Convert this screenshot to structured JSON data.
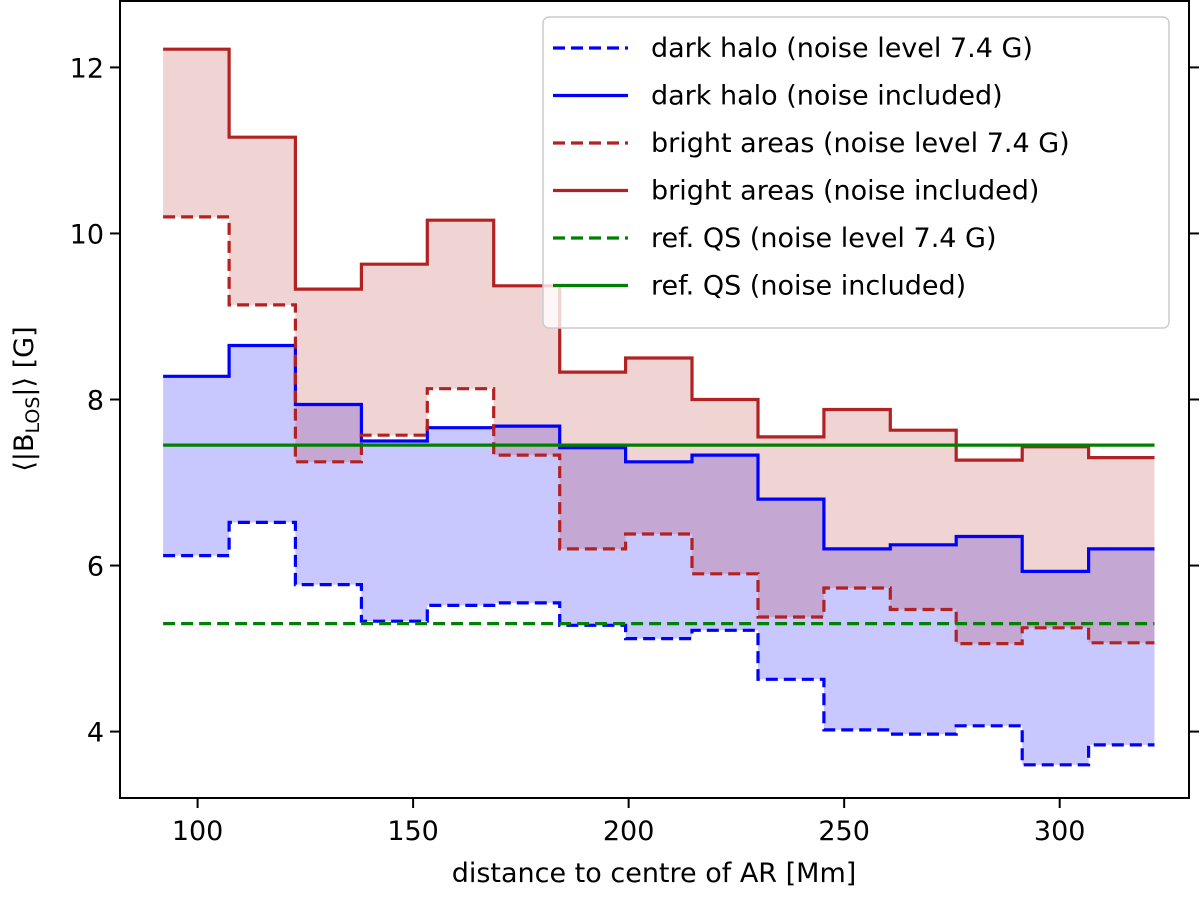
{
  "chart_data": {
    "type": "line",
    "drawstyle": "steps",
    "xlabel": "distance to centre of AR [Mm]",
    "ylabel_parts": {
      "prefix": "⟨|B",
      "subscript": "LOS",
      "suffix": "|⟩ [G]"
    },
    "xlim": [
      82,
      330
    ],
    "ylim": [
      3.2,
      12.8
    ],
    "xticks": [
      100,
      150,
      200,
      250,
      300
    ],
    "yticks": [
      4,
      6,
      8,
      10,
      12
    ],
    "grid": false,
    "legend_position": "top-right",
    "bin_edges": [
      92,
      107.3,
      122.7,
      138,
      153.3,
      168.7,
      184,
      199.3,
      214.7,
      230,
      245.3,
      260.7,
      276,
      291.3,
      306.7,
      322
    ],
    "series": [
      {
        "name": "dark halo (noise level 7.4 G)",
        "color": "#0000ff",
        "dash": true,
        "values": [
          6.12,
          6.52,
          5.77,
          5.33,
          5.52,
          5.55,
          5.28,
          5.12,
          5.22,
          4.63,
          4.02,
          3.97,
          4.07,
          3.6,
          3.84
        ]
      },
      {
        "name": "dark halo (noise included)",
        "color": "#0000ff",
        "dash": false,
        "values": [
          8.28,
          8.65,
          7.94,
          7.5,
          7.66,
          7.68,
          7.42,
          7.25,
          7.33,
          6.8,
          6.2,
          6.25,
          6.35,
          5.93,
          6.2
        ]
      },
      {
        "name": "bright areas (noise level 7.4 G)",
        "color": "#b22222",
        "dash": true,
        "values": [
          10.2,
          9.14,
          7.25,
          7.57,
          8.13,
          7.33,
          6.2,
          6.38,
          5.9,
          5.38,
          5.73,
          5.47,
          5.06,
          5.25,
          5.07
        ]
      },
      {
        "name": "bright areas (noise included)",
        "color": "#b22222",
        "dash": false,
        "values": [
          12.22,
          11.16,
          9.33,
          9.63,
          10.16,
          9.37,
          8.33,
          8.5,
          8.0,
          7.55,
          7.88,
          7.63,
          7.27,
          7.43,
          7.3
        ]
      },
      {
        "name": "ref. QS (noise level 7.4 G)",
        "color": "#008000",
        "dash": true,
        "constant": 5.3
      },
      {
        "name": "ref. QS (noise included)",
        "color": "#008000",
        "dash": false,
        "constant": 7.45
      }
    ],
    "fills": [
      {
        "between": [
          0,
          1
        ],
        "color": "rgba(110,110,255,0.38)"
      },
      {
        "between": [
          2,
          3
        ],
        "color": "rgba(178,34,34,0.2)"
      }
    ]
  }
}
